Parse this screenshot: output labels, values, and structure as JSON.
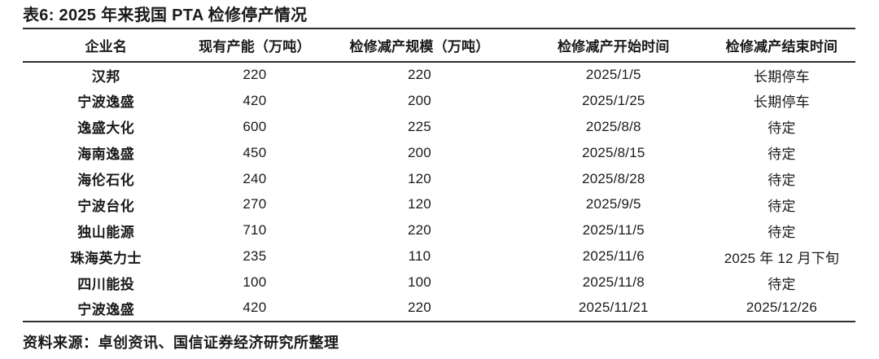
{
  "title": "表6: 2025 年来我国 PTA 检修停产情况",
  "table": {
    "headers": [
      "企业名",
      "现有产能（万吨）",
      "检修减产规模（万吨）",
      "检修减产开始时间",
      "检修减产结束时间"
    ],
    "rows": [
      [
        "汉邦",
        "220",
        "220",
        "2025/1/5",
        "长期停车"
      ],
      [
        "宁波逸盛",
        "420",
        "200",
        "2025/1/25",
        "长期停车"
      ],
      [
        "逸盛大化",
        "600",
        "225",
        "2025/8/8",
        "待定"
      ],
      [
        "海南逸盛",
        "450",
        "200",
        "2025/8/15",
        "待定"
      ],
      [
        "海伦石化",
        "240",
        "120",
        "2025/8/28",
        "待定"
      ],
      [
        "宁波台化",
        "270",
        "120",
        "2025/9/5",
        "待定"
      ],
      [
        "独山能源",
        "710",
        "220",
        "2025/11/5",
        "待定"
      ],
      [
        "珠海英力士",
        "235",
        "110",
        "2025/11/6",
        "2025 年 12 月下旬"
      ],
      [
        "四川能投",
        "100",
        "100",
        "2025/11/8",
        "待定"
      ],
      [
        "宁波逸盛",
        "420",
        "220",
        "2025/11/21",
        "2025/12/26"
      ]
    ]
  },
  "footer": {
    "source": "资料来源：卓创资讯、国信证券经济研究所整理"
  },
  "colors": {
    "text": "#1a1a1a",
    "rule": "#2e2e2e",
    "background": "#ffffff"
  }
}
